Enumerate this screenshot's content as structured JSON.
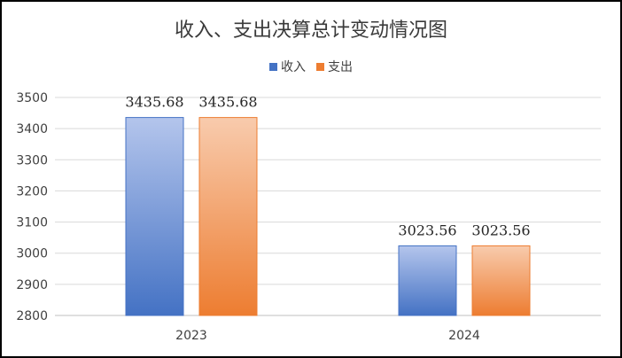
{
  "chart_data": {
    "type": "bar",
    "title": "收入、支出决算总计变动情况图",
    "categories": [
      "2023",
      "2024"
    ],
    "series": [
      {
        "name": "收入",
        "values": [
          3435.68,
          3023.56
        ],
        "color": "#4472c4"
      },
      {
        "name": "支出",
        "values": [
          3435.68,
          3023.56
        ],
        "color": "#ed7d31"
      }
    ],
    "data_labels": [
      [
        "3435.68",
        "3023.56"
      ],
      [
        "3435.68",
        "3023.56"
      ]
    ],
    "ylim": [
      2800,
      3500
    ],
    "yticks": [
      2800,
      2900,
      3000,
      3100,
      3200,
      3300,
      3400,
      3500
    ],
    "xlabel": "",
    "ylabel": "",
    "grid": true,
    "legend_position": "top"
  }
}
